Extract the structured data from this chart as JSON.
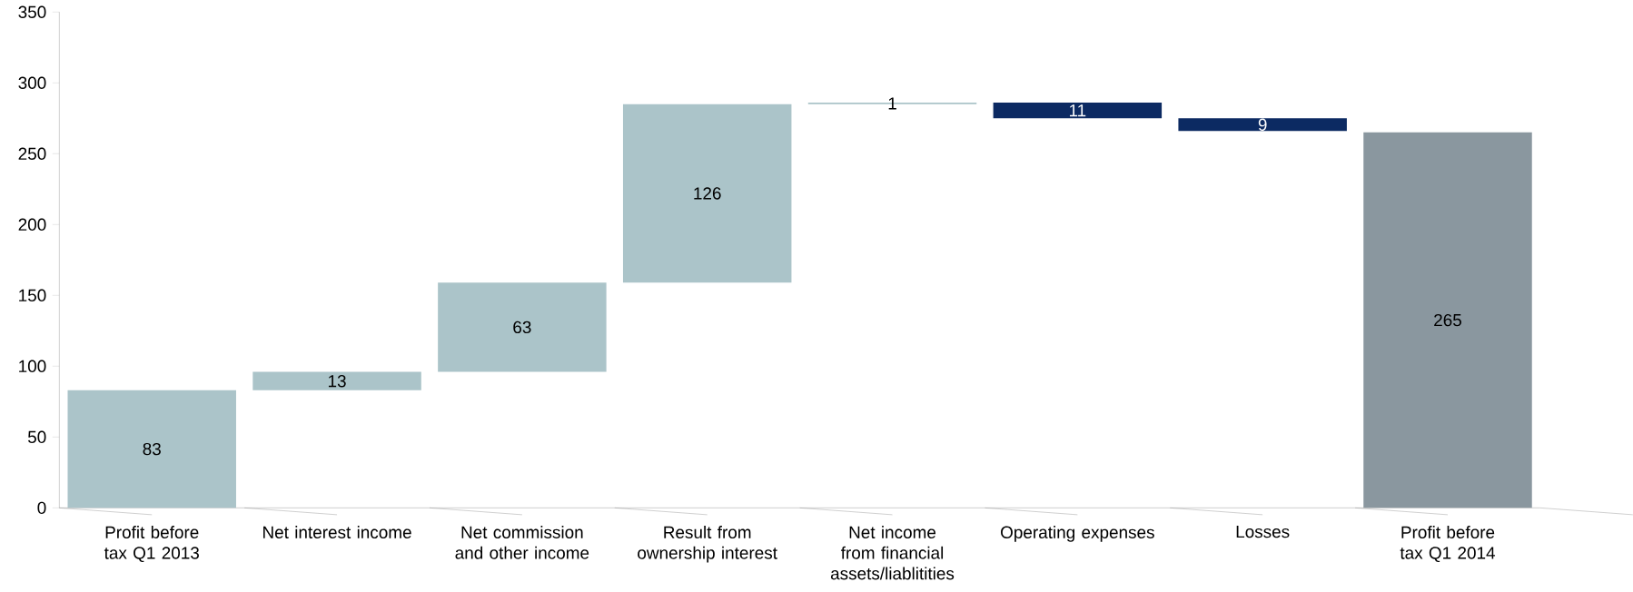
{
  "chart_data": {
    "type": "bar",
    "categories": [
      "Profit before tax Q1 2013",
      "Net interest income",
      "Net commission and other income",
      "Result from ownership interest",
      "Net income from financial assets/liablitities",
      "Operating expenses",
      "Losses",
      "Profit before tax Q1 2014"
    ],
    "values": [
      83,
      13,
      63,
      126,
      1,
      -11,
      -9,
      265
    ],
    "base": [
      0,
      83,
      96,
      159,
      285,
      286,
      275,
      0
    ],
    "colors": [
      "#abc4c9",
      "#abc4c9",
      "#abc4c9",
      "#abc4c9",
      "#abc4c9",
      "#0c2a62",
      "#0c2a62",
      "#8a979f"
    ],
    "value_labels": [
      "83",
      "13",
      "63",
      "126",
      "1",
      "11",
      "9",
      "265"
    ],
    "ylim": [
      0,
      350
    ],
    "yticks": [
      0,
      50,
      100,
      150,
      200,
      250,
      300,
      350
    ]
  }
}
